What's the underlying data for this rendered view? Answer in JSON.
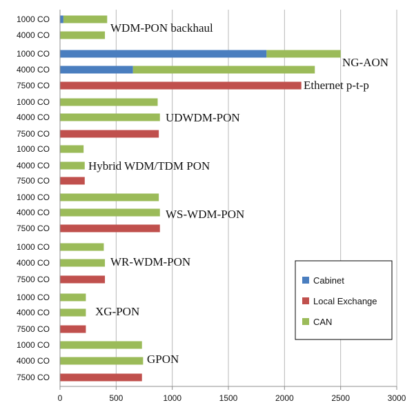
{
  "chart_data": {
    "type": "bar",
    "orientation": "horizontal",
    "stacked": true,
    "xlim": [
      0,
      3000
    ],
    "x_ticks": [
      0,
      500,
      1000,
      1500,
      2000,
      2500,
      3000
    ],
    "grid": "vertical",
    "legend_position": "lower-right",
    "series_colors": {
      "Cabinet": "#4a7ebf",
      "Local Exchange": "#c0504d",
      "CAN": "#9bbb59"
    },
    "legend": [
      "Cabinet",
      "Local Exchange",
      "CAN"
    ],
    "groups": [
      {
        "name": "WDM-PON backhaul",
        "rows": [
          {
            "label": "1000 CO",
            "Cabinet": 30,
            "Local Exchange": 0,
            "CAN": 390
          },
          {
            "label": "4000 CO",
            "Cabinet": 0,
            "Local Exchange": 0,
            "CAN": 400
          }
        ]
      },
      {
        "name": "NG-AON",
        "rows": [
          {
            "label": "1000 CO",
            "Cabinet": 1840,
            "Local Exchange": 0,
            "CAN": 660
          },
          {
            "label": "4000 CO",
            "Cabinet": 650,
            "Local Exchange": 0,
            "CAN": 1620
          }
        ]
      },
      {
        "name": "Ethernet p-t-p",
        "rows": [
          {
            "label": "7500 CO",
            "Cabinet": 0,
            "Local Exchange": 2150,
            "CAN": 0
          }
        ]
      },
      {
        "name": "UDWDM-PON",
        "rows": [
          {
            "label": "1000 CO",
            "Cabinet": 0,
            "Local Exchange": 0,
            "CAN": 870
          },
          {
            "label": "4000 CO",
            "Cabinet": 0,
            "Local Exchange": 0,
            "CAN": 890
          },
          {
            "label": "7500 CO",
            "Cabinet": 0,
            "Local Exchange": 880,
            "CAN": 0
          }
        ]
      },
      {
        "name": "Hybrid WDM/TDM PON",
        "rows": [
          {
            "label": "1000 CO",
            "Cabinet": 0,
            "Local Exchange": 0,
            "CAN": 210
          },
          {
            "label": "4000 CO",
            "Cabinet": 0,
            "Local Exchange": 0,
            "CAN": 220
          },
          {
            "label": "7500 CO",
            "Cabinet": 0,
            "Local Exchange": 220,
            "CAN": 0
          }
        ]
      },
      {
        "name": "WS-WDM-PON",
        "rows": [
          {
            "label": "1000 CO",
            "Cabinet": 0,
            "Local Exchange": 0,
            "CAN": 880
          },
          {
            "label": "4000 CO",
            "Cabinet": 0,
            "Local Exchange": 0,
            "CAN": 890
          },
          {
            "label": "7500 CO",
            "Cabinet": 0,
            "Local Exchange": 890,
            "CAN": 0
          }
        ]
      },
      {
        "name": "WR-WDM-PON",
        "rows": [
          {
            "label": "1000 CO",
            "Cabinet": 0,
            "Local Exchange": 0,
            "CAN": 390
          },
          {
            "label": "4000 CO",
            "Cabinet": 0,
            "Local Exchange": 0,
            "CAN": 400
          },
          {
            "label": "7500 CO",
            "Cabinet": 0,
            "Local Exchange": 400,
            "CAN": 0
          }
        ]
      },
      {
        "name": "XG-PON",
        "rows": [
          {
            "label": "1000 CO",
            "Cabinet": 0,
            "Local Exchange": 0,
            "CAN": 230
          },
          {
            "label": "4000 CO",
            "Cabinet": 0,
            "Local Exchange": 0,
            "CAN": 230
          },
          {
            "label": "7500 CO",
            "Cabinet": 0,
            "Local Exchange": 230,
            "CAN": 0
          }
        ]
      },
      {
        "name": "GPON",
        "rows": [
          {
            "label": "1000 CO",
            "Cabinet": 0,
            "Local Exchange": 0,
            "CAN": 730
          },
          {
            "label": "4000 CO",
            "Cabinet": 0,
            "Local Exchange": 0,
            "CAN": 740
          },
          {
            "label": "7500 CO",
            "Cabinet": 0,
            "Local Exchange": 730,
            "CAN": 0
          }
        ]
      }
    ]
  }
}
